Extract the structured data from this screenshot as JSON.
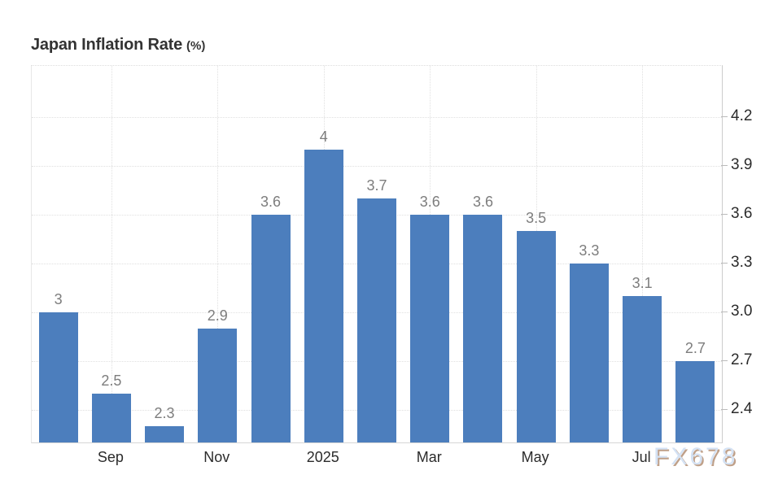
{
  "header": {
    "title": "Japan Inflation Rate",
    "unit": "(%)"
  },
  "watermark": {
    "text": "FX678"
  },
  "chart_data": {
    "type": "bar",
    "title": "Japan Inflation Rate (%)",
    "categories": [
      "",
      "Sep",
      "",
      "Nov",
      "",
      "2025",
      "",
      "Mar",
      "",
      "May",
      "",
      "Jul",
      ""
    ],
    "values": [
      3,
      2.5,
      2.3,
      2.9,
      3.6,
      4,
      3.7,
      3.6,
      3.6,
      3.5,
      3.3,
      3.1,
      2.7
    ],
    "value_labels": [
      "3",
      "2.5",
      "2.3",
      "2.9",
      "3.6",
      "4",
      "3.7",
      "3.6",
      "3.6",
      "3.5",
      "3.3",
      "3.1",
      "2.7"
    ],
    "yticks": [
      "4.2",
      "3.9",
      "3.6",
      "3.3",
      "3.0",
      "2.7",
      "2.4"
    ],
    "ylim": [
      2.2,
      4.515
    ],
    "xlabel": "",
    "ylabel": "",
    "grid": true,
    "legend_position": "none",
    "colors": {
      "bar": "#4c7ebd",
      "grid": "#e0e0e0",
      "axis": "#cccccc",
      "value_label": "#7d7d7d",
      "tick_label": "#2b2b2b",
      "title": "#333333",
      "watermark_fill": "#d4e2f4",
      "watermark_shadow": "#bfa089"
    }
  }
}
